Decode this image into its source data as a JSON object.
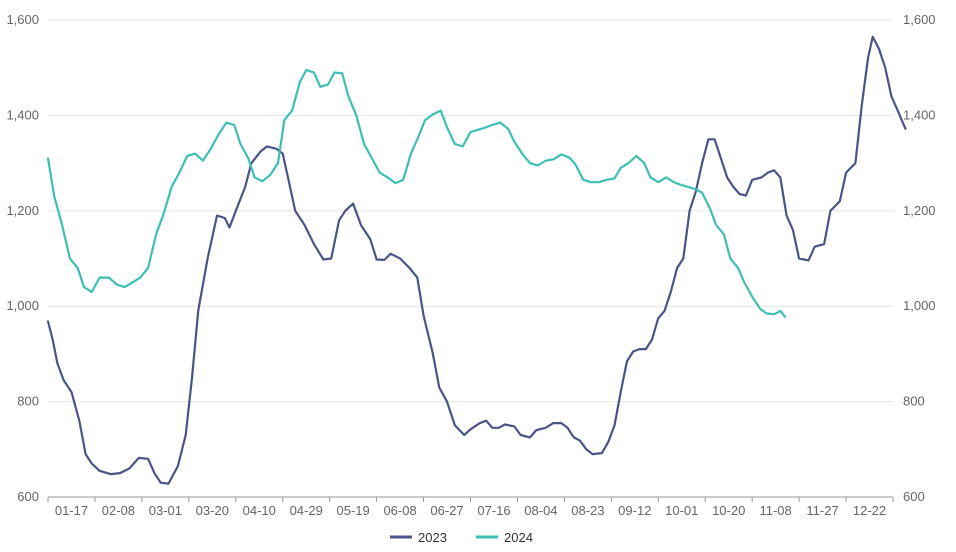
{
  "chart_data": {
    "type": "line",
    "x_tick_labels": [
      "01-17",
      "02-08",
      "03-01",
      "03-20",
      "04-10",
      "04-29",
      "05-19",
      "06-08",
      "06-27",
      "07-16",
      "08-04",
      "08-23",
      "09-12",
      "10-01",
      "10-20",
      "11-08",
      "11-27",
      "12-22"
    ],
    "ylim": [
      600,
      1600
    ],
    "y_ticks": [
      600,
      800,
      1000,
      1200,
      1400,
      1600
    ],
    "y_tick_labels": [
      "600",
      "800",
      "1,000",
      "1,200",
      "1,400",
      "1,600"
    ],
    "y2_tick_labels": [
      "600",
      "800",
      "1,000",
      "1,200",
      "1,400",
      "1,600"
    ],
    "grid": true,
    "legend_position": "bottom-center",
    "series": [
      {
        "name": "2023",
        "color": "#4a5488",
        "points": [
          [
            0.0,
            968
          ],
          [
            0.3,
            930
          ],
          [
            0.6,
            880
          ],
          [
            1.0,
            845
          ],
          [
            1.5,
            820
          ],
          [
            2.0,
            760
          ],
          [
            2.4,
            690
          ],
          [
            2.8,
            670
          ],
          [
            3.3,
            655
          ],
          [
            4.0,
            648
          ],
          [
            4.6,
            650
          ],
          [
            5.2,
            660
          ],
          [
            5.8,
            682
          ],
          [
            6.4,
            680
          ],
          [
            6.8,
            650
          ],
          [
            7.2,
            630
          ],
          [
            7.7,
            628
          ],
          [
            8.3,
            665
          ],
          [
            8.8,
            730
          ],
          [
            9.2,
            850
          ],
          [
            9.6,
            990
          ],
          [
            10.2,
            1100
          ],
          [
            10.8,
            1190
          ],
          [
            11.3,
            1185
          ],
          [
            11.6,
            1165
          ],
          [
            12.0,
            1200
          ],
          [
            12.6,
            1250
          ],
          [
            13.0,
            1300
          ],
          [
            13.6,
            1325
          ],
          [
            14.0,
            1335
          ],
          [
            14.6,
            1330
          ],
          [
            15.0,
            1320
          ],
          [
            15.4,
            1260
          ],
          [
            15.8,
            1200
          ],
          [
            16.4,
            1170
          ],
          [
            17.0,
            1130
          ],
          [
            17.6,
            1098
          ],
          [
            18.1,
            1100
          ],
          [
            18.6,
            1180
          ],
          [
            19.0,
            1200
          ],
          [
            19.5,
            1215
          ],
          [
            20.0,
            1170
          ],
          [
            20.6,
            1140
          ],
          [
            21.0,
            1098
          ],
          [
            21.5,
            1097
          ],
          [
            21.9,
            1110
          ],
          [
            22.5,
            1100
          ],
          [
            23.1,
            1080
          ],
          [
            23.6,
            1060
          ],
          [
            24.0,
            980
          ],
          [
            24.6,
            900
          ],
          [
            25.0,
            830
          ],
          [
            25.5,
            800
          ],
          [
            26.0,
            750
          ],
          [
            26.6,
            730
          ],
          [
            27.0,
            742
          ],
          [
            27.6,
            755
          ],
          [
            28.0,
            760
          ],
          [
            28.4,
            745
          ],
          [
            28.8,
            745
          ],
          [
            29.2,
            752
          ],
          [
            29.8,
            748
          ],
          [
            30.2,
            730
          ],
          [
            30.8,
            725
          ],
          [
            31.2,
            740
          ],
          [
            31.8,
            745
          ],
          [
            32.3,
            755
          ],
          [
            32.8,
            755
          ],
          [
            33.2,
            745
          ],
          [
            33.6,
            725
          ],
          [
            34.0,
            718
          ],
          [
            34.4,
            700
          ],
          [
            34.8,
            690
          ],
          [
            35.4,
            692
          ],
          [
            35.8,
            715
          ],
          [
            36.2,
            750
          ],
          [
            36.6,
            820
          ],
          [
            37.0,
            885
          ],
          [
            37.4,
            905
          ],
          [
            37.8,
            910
          ],
          [
            38.2,
            910
          ],
          [
            38.6,
            930
          ],
          [
            39.0,
            975
          ],
          [
            39.4,
            990
          ],
          [
            39.8,
            1030
          ],
          [
            40.2,
            1080
          ],
          [
            40.6,
            1100
          ],
          [
            41.0,
            1200
          ],
          [
            41.4,
            1240
          ],
          [
            41.8,
            1300
          ],
          [
            42.2,
            1350
          ],
          [
            42.6,
            1350
          ],
          [
            43.0,
            1310
          ],
          [
            43.4,
            1270
          ],
          [
            43.8,
            1250
          ],
          [
            44.2,
            1235
          ],
          [
            44.6,
            1232
          ],
          [
            45.0,
            1265
          ],
          [
            45.6,
            1270
          ],
          [
            46.0,
            1280
          ],
          [
            46.4,
            1285
          ],
          [
            46.8,
            1270
          ],
          [
            47.2,
            1190
          ],
          [
            47.6,
            1160
          ],
          [
            48.0,
            1100
          ],
          [
            48.6,
            1096
          ],
          [
            49.0,
            1125
          ],
          [
            49.6,
            1130
          ],
          [
            50.0,
            1200
          ],
          [
            50.6,
            1220
          ],
          [
            51.0,
            1280
          ],
          [
            51.6,
            1300
          ],
          [
            52.0,
            1420
          ],
          [
            52.4,
            1520
          ],
          [
            52.7,
            1565
          ],
          [
            53.1,
            1540
          ],
          [
            53.5,
            1500
          ],
          [
            53.9,
            1440
          ],
          [
            54.3,
            1410
          ],
          [
            54.8,
            1372
          ]
        ]
      },
      {
        "name": "2024",
        "color": "#3dbfb4",
        "points": [
          [
            0.0,
            1310
          ],
          [
            0.4,
            1230
          ],
          [
            0.9,
            1170
          ],
          [
            1.4,
            1100
          ],
          [
            1.9,
            1080
          ],
          [
            2.3,
            1040
          ],
          [
            2.8,
            1030
          ],
          [
            3.3,
            1060
          ],
          [
            3.9,
            1060
          ],
          [
            4.4,
            1045
          ],
          [
            4.9,
            1040
          ],
          [
            5.4,
            1050
          ],
          [
            5.9,
            1060
          ],
          [
            6.4,
            1080
          ],
          [
            6.9,
            1150
          ],
          [
            7.4,
            1195
          ],
          [
            7.9,
            1250
          ],
          [
            8.4,
            1280
          ],
          [
            8.9,
            1315
          ],
          [
            9.4,
            1320
          ],
          [
            9.9,
            1305
          ],
          [
            10.4,
            1330
          ],
          [
            10.9,
            1360
          ],
          [
            11.4,
            1385
          ],
          [
            11.9,
            1380
          ],
          [
            12.3,
            1340
          ],
          [
            12.8,
            1310
          ],
          [
            13.2,
            1270
          ],
          [
            13.7,
            1262
          ],
          [
            14.2,
            1275
          ],
          [
            14.7,
            1300
          ],
          [
            15.1,
            1390
          ],
          [
            15.6,
            1410
          ],
          [
            16.1,
            1470
          ],
          [
            16.5,
            1495
          ],
          [
            17.0,
            1490
          ],
          [
            17.4,
            1460
          ],
          [
            17.9,
            1465
          ],
          [
            18.3,
            1490
          ],
          [
            18.8,
            1488
          ],
          [
            19.2,
            1440
          ],
          [
            19.7,
            1400
          ],
          [
            20.2,
            1340
          ],
          [
            20.7,
            1310
          ],
          [
            21.2,
            1280
          ],
          [
            21.7,
            1270
          ],
          [
            22.2,
            1258
          ],
          [
            22.7,
            1265
          ],
          [
            23.2,
            1320
          ],
          [
            23.6,
            1350
          ],
          [
            24.1,
            1390
          ],
          [
            24.6,
            1402
          ],
          [
            25.1,
            1410
          ],
          [
            25.5,
            1375
          ],
          [
            26.0,
            1340
          ],
          [
            26.5,
            1335
          ],
          [
            27.0,
            1365
          ],
          [
            27.5,
            1370
          ],
          [
            28.0,
            1375
          ],
          [
            28.4,
            1380
          ],
          [
            28.9,
            1385
          ],
          [
            29.4,
            1372
          ],
          [
            29.8,
            1345
          ],
          [
            30.3,
            1320
          ],
          [
            30.8,
            1300
          ],
          [
            31.3,
            1295
          ],
          [
            31.8,
            1305
          ],
          [
            32.3,
            1308
          ],
          [
            32.8,
            1318
          ],
          [
            33.3,
            1312
          ],
          [
            33.7,
            1298
          ],
          [
            34.2,
            1265
          ],
          [
            34.7,
            1260
          ],
          [
            35.2,
            1260
          ],
          [
            35.7,
            1265
          ],
          [
            36.2,
            1268
          ],
          [
            36.6,
            1290
          ],
          [
            37.1,
            1300
          ],
          [
            37.6,
            1315
          ],
          [
            38.1,
            1300
          ],
          [
            38.5,
            1270
          ],
          [
            39.0,
            1260
          ],
          [
            39.5,
            1270
          ],
          [
            40.0,
            1260
          ],
          [
            40.4,
            1255
          ],
          [
            40.9,
            1250
          ],
          [
            41.4,
            1245
          ],
          [
            41.8,
            1238
          ],
          [
            42.3,
            1205
          ],
          [
            42.7,
            1170
          ],
          [
            43.2,
            1150
          ],
          [
            43.6,
            1100
          ],
          [
            44.1,
            1080
          ],
          [
            44.5,
            1050
          ],
          [
            45.0,
            1020
          ],
          [
            45.5,
            995
          ],
          [
            45.9,
            985
          ],
          [
            46.4,
            983
          ],
          [
            46.8,
            990
          ],
          [
            47.1,
            978
          ]
        ]
      }
    ]
  },
  "legend": {
    "items": [
      {
        "label": "2023",
        "color": "#4a5488"
      },
      {
        "label": "2024",
        "color": "#3dbfb4"
      }
    ]
  },
  "style": {
    "grid_color": "#e6e6e6",
    "axis_color": "#999999"
  }
}
